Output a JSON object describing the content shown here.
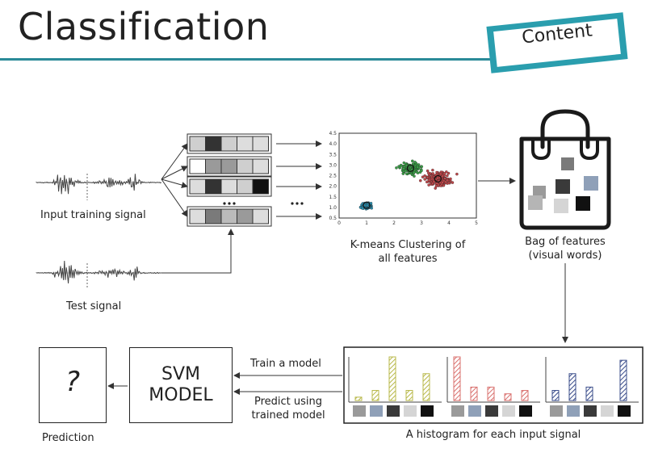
{
  "title": "Classification",
  "badge": "Content",
  "labels": {
    "input_training_signal": "Input training signal",
    "test_signal": "Test signal",
    "kmeans_line1": "K-means Clustering of",
    "kmeans_line2": "all features",
    "bag_line1": "Bag of features",
    "bag_line2": "(visual words)",
    "train_model": "Train a model",
    "predict_line1": "Predict using",
    "predict_line2": "trained model",
    "svm_line1": "SVM",
    "svm_line2": "MODEL",
    "question": "?",
    "prediction": "Prediction",
    "histogram_caption": "A histogram for each input signal",
    "ellipsis": "..."
  },
  "scatter": {
    "x_ticks": [
      "0",
      "1",
      "2",
      "3",
      "4",
      "5"
    ],
    "y_ticks": [
      "0.5",
      "1.0",
      "1.5",
      "2.0",
      "2.5",
      "3.0",
      "3.5",
      "4.0",
      "4.5"
    ],
    "xlim": [
      0,
      5
    ],
    "ylim": [
      0.5,
      4.5
    ],
    "clusters": [
      {
        "color": "#2a8fb0",
        "center": [
          1.0,
          1.1
        ],
        "spread": 0.2,
        "n": 60
      },
      {
        "color": "#3aa047",
        "center": [
          2.6,
          2.85
        ],
        "spread": 0.35,
        "n": 120
      },
      {
        "color": "#c0474a",
        "center": [
          3.6,
          2.35
        ],
        "spread": 0.45,
        "n": 180
      }
    ]
  },
  "feature_rows": [
    [
      "#cfcfcf",
      "#333333",
      "#cfcfcf",
      "#dddddd",
      "#dddddd"
    ],
    [
      "#ffffff",
      "#9a9a9a",
      "#9a9a9a",
      "#cfcfcf",
      "#dddddd"
    ],
    [
      "#dddddd",
      "#333333",
      "#dddddd",
      "#cfcfcf",
      "#111111"
    ],
    [
      "#dddddd",
      "#7a7a7a",
      "#bbbbbb",
      "#9a9a9a",
      "#dddddd"
    ]
  ],
  "bag_words": [
    "#7a7a7a",
    "#9a9a9a",
    "#8fa0b8",
    "#3a3a3a",
    "#b5b5b5",
    "#111111",
    "#d5d5d5"
  ],
  "word_swatches": [
    "#9a9a9a",
    "#8fa0b8",
    "#3a3a3a",
    "#d5d5d5",
    "#111111"
  ],
  "histograms": [
    {
      "color": "#b8b84a",
      "values": [
        1,
        3,
        13,
        3,
        8
      ]
    },
    {
      "color": "#d9706e",
      "values": [
        13,
        4,
        4,
        2,
        3
      ]
    },
    {
      "color": "#3a4c8a",
      "values": [
        3,
        8,
        4,
        0,
        12
      ]
    }
  ],
  "colors": {
    "accent": "#2a8a98"
  }
}
